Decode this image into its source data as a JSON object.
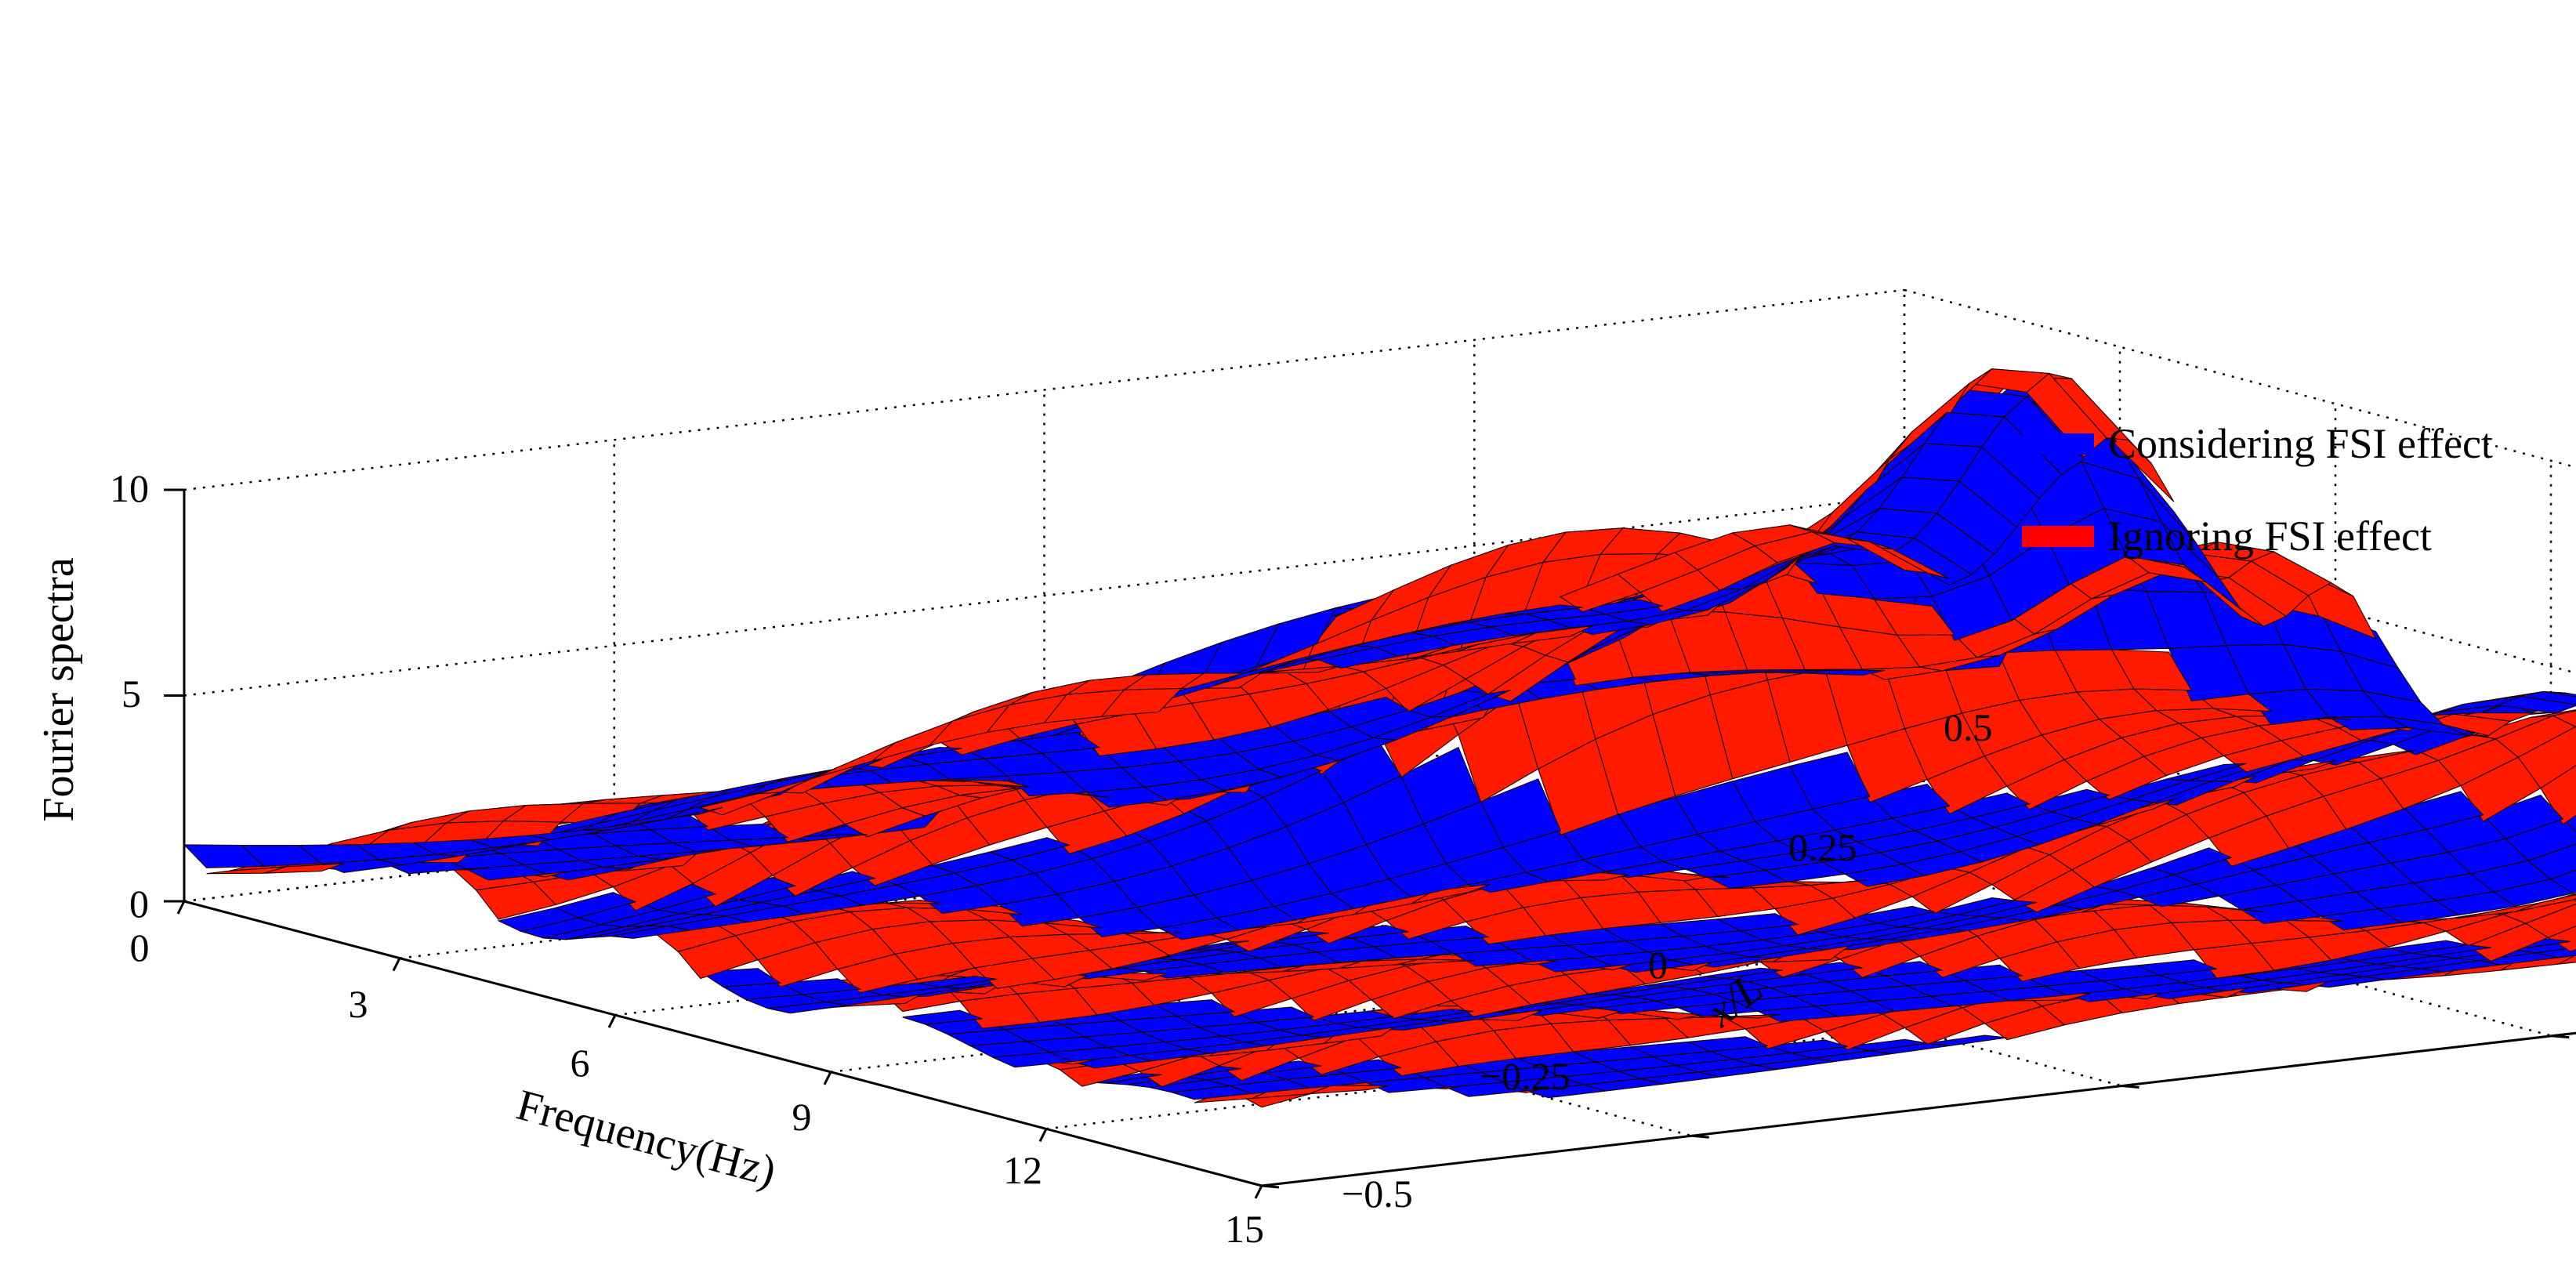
{
  "chart_data": {
    "type": "surface",
    "xlabel": "Frequency(Hz)",
    "ylabel": "x/L",
    "zlabel": "Fourier spectra",
    "xlim": [
      0,
      15
    ],
    "ylim": [
      -0.5,
      0.5
    ],
    "zlim": [
      0,
      10
    ],
    "x_ticks": [
      "0",
      "3",
      "6",
      "9",
      "12",
      "15"
    ],
    "y_ticks": [
      "−0.5",
      "−0.25",
      "0",
      "0.25",
      "0.5"
    ],
    "z_ticks": [
      "0",
      "5",
      "10"
    ],
    "grid": true,
    "legend_position": "right",
    "series": [
      {
        "name": "Considering FSI effect",
        "color": "#0000ff"
      },
      {
        "name": "Ignoring FSI effect",
        "color": "#ff0000"
      }
    ]
  }
}
